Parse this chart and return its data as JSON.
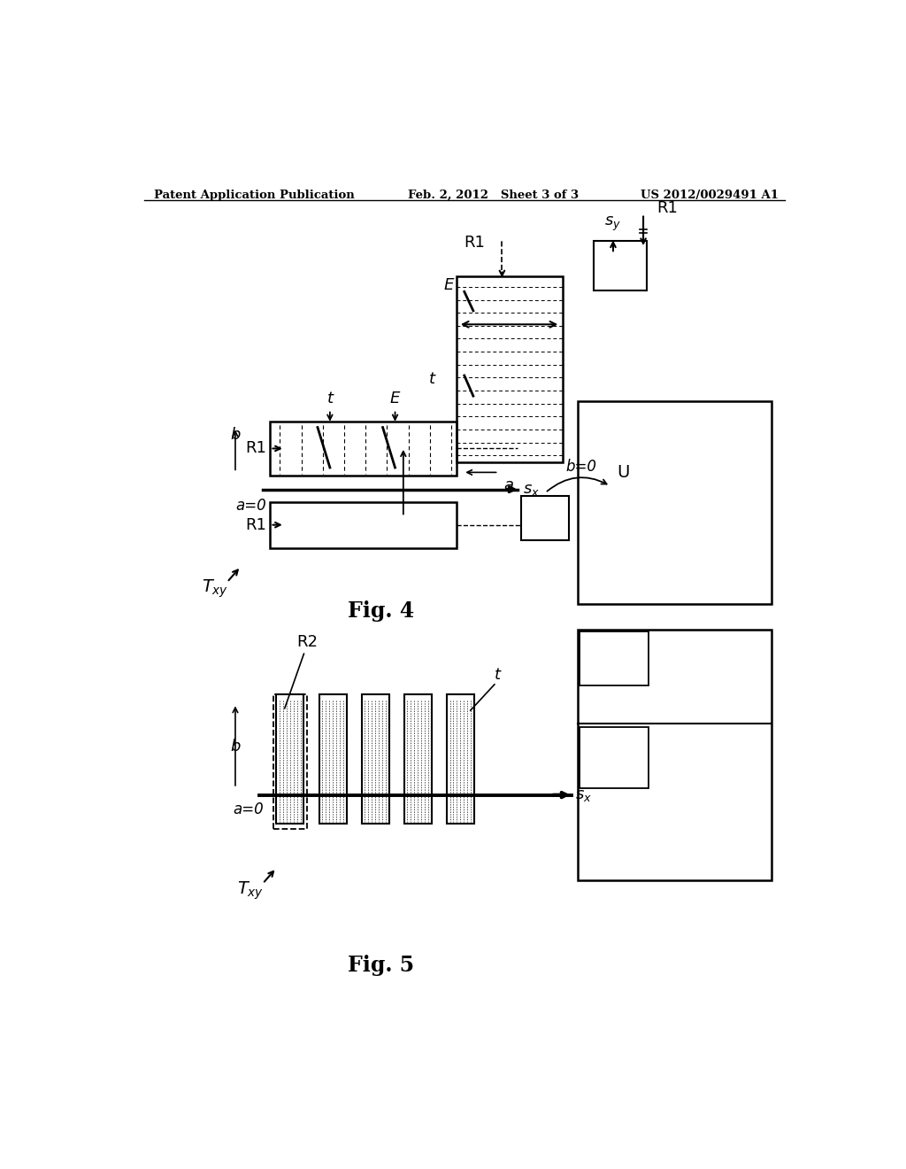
{
  "bg_color": "#ffffff",
  "header_left": "Patent Application Publication",
  "header_center": "Feb. 2, 2012   Sheet 3 of 3",
  "header_right": "US 2012/0029491 A1",
  "fig4_label": "Fig. 4",
  "fig5_label": "Fig. 5"
}
